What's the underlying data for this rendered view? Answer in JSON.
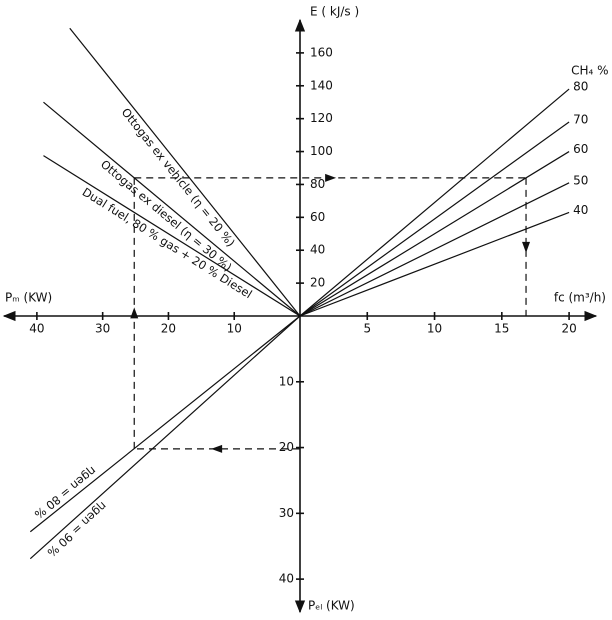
{
  "chart_data": {
    "type": "nomogram",
    "axes": [
      {
        "label": "E ( kJ/s )",
        "lim": [
          0,
          180
        ],
        "ticks": [
          20,
          40,
          60,
          80,
          100,
          120,
          140,
          160
        ]
      },
      {
        "label": "fc (m³/h)",
        "lim": [
          0,
          22
        ],
        "ticks": [
          5,
          10,
          15,
          20
        ]
      },
      {
        "label": "Pₘ (KW)",
        "lim": [
          0,
          45
        ],
        "ticks": [
          10,
          20,
          30,
          40
        ]
      },
      {
        "label": "Pₑₗ (KW)",
        "lim": [
          0,
          45
        ],
        "ticks": [
          10,
          20,
          30,
          40
        ]
      }
    ],
    "fuel_lines_title": "CH₄ %",
    "fuel_lines": [
      {
        "name": "80",
        "x": [
          0,
          20
        ],
        "values": [
          0,
          138
        ]
      },
      {
        "name": "70",
        "x": [
          0,
          20
        ],
        "values": [
          0,
          118
        ]
      },
      {
        "name": "60",
        "x": [
          0,
          20
        ],
        "values": [
          0,
          100
        ]
      },
      {
        "name": "50",
        "x": [
          0,
          20
        ],
        "values": [
          0,
          81
        ]
      },
      {
        "name": "40",
        "x": [
          0,
          20
        ],
        "values": [
          0,
          63
        ]
      }
    ],
    "engine_lines": [
      {
        "name": "Ottogas ex vehicle (η = 20 %)",
        "x": [
          0,
          35
        ],
        "values": [
          0,
          175
        ]
      },
      {
        "name": "Ottogas ex diesel (η = 30 %)",
        "x": [
          0,
          39
        ],
        "values": [
          0,
          130
        ]
      },
      {
        "name": "Dual fuel, 80 % gas + 20 % Diesel",
        "x": [
          0,
          39
        ],
        "values": [
          0,
          97.5
        ]
      }
    ],
    "generator_lines": [
      {
        "name": "ηgen = 80 %",
        "x": [
          0,
          41
        ],
        "values": [
          0,
          32.8
        ]
      },
      {
        "name": "ηgen = 90 %",
        "x": [
          0,
          41
        ],
        "values": [
          0,
          36.9
        ]
      }
    ],
    "example": {
      "f": 16.8,
      "e": 84,
      "pm": 25.2,
      "pel": 20.2
    }
  }
}
